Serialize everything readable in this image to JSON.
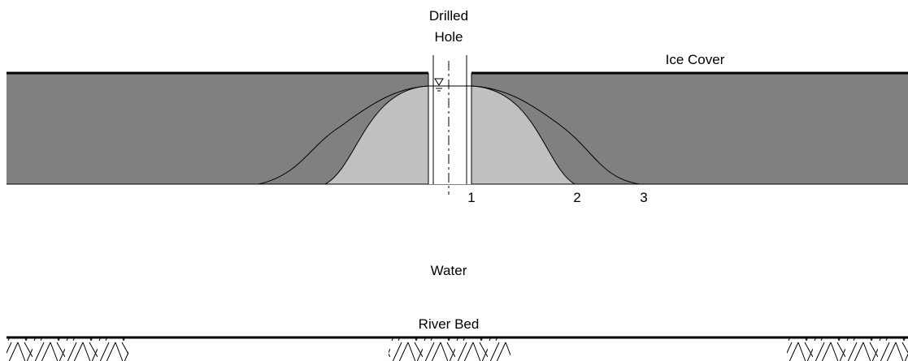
{
  "hole_label": [
    "Drilled",
    "Hole"
  ],
  "ice_label": "Ice Cover",
  "profiles": [
    "1",
    "2",
    "3"
  ],
  "water_label": "Water",
  "bed_label": "River Bed"
}
